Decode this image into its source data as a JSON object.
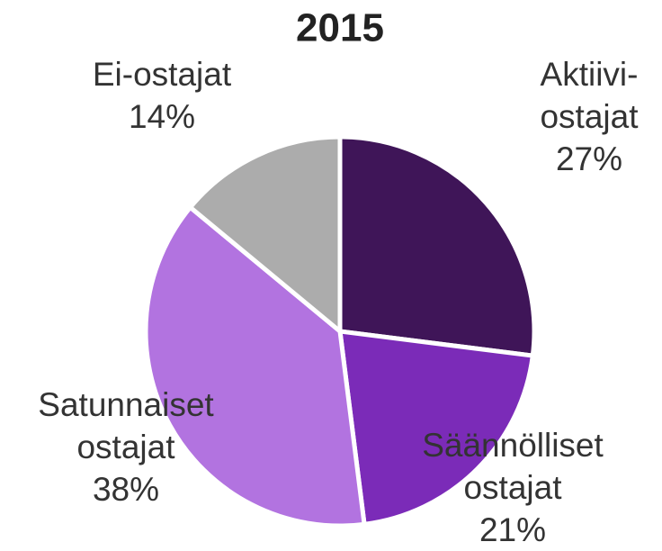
{
  "chart_data": {
    "type": "pie",
    "title": "2015",
    "categories": [
      [
        "Aktiivi-",
        "ostajat"
      ],
      [
        "Säännölliset",
        "ostajat"
      ],
      [
        "Satunnaiset",
        "ostajat"
      ],
      [
        "Ei-ostajat"
      ]
    ],
    "values": [
      27,
      21,
      38,
      14
    ],
    "value_labels": [
      "27%",
      "21%",
      "38%",
      "14%"
    ],
    "colors": [
      "#3f1558",
      "#7b2bb8",
      "#b273e0",
      "#acacac"
    ]
  }
}
